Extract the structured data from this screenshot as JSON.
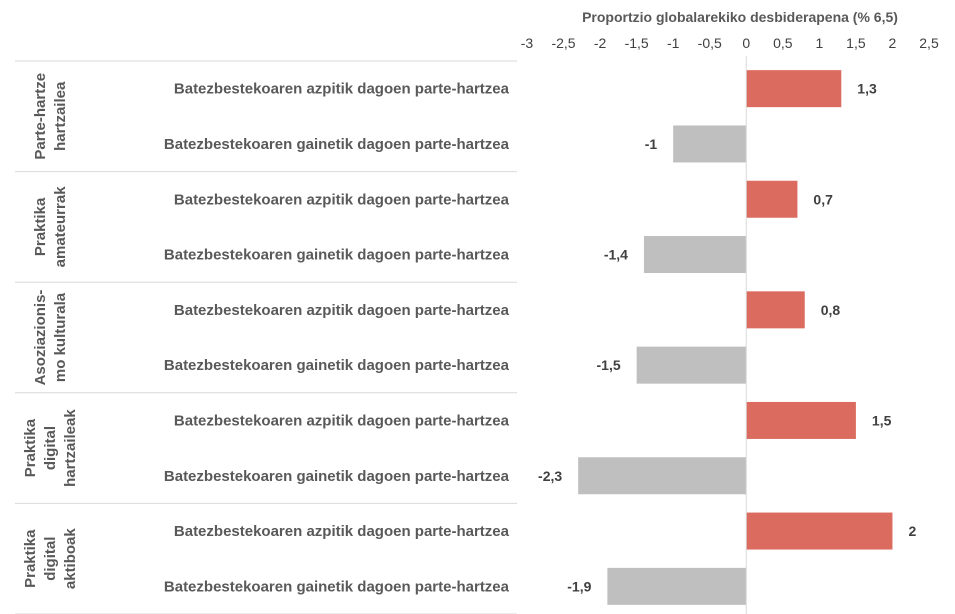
{
  "chart_data": {
    "type": "bar",
    "orientation": "horizontal",
    "title": "",
    "xlabel": "Proportzio globalarekiko desbiderapena (% 6,5)",
    "ylabel": "",
    "xlim": [
      -3,
      2.5
    ],
    "xticks": [
      "-3",
      "-2,5",
      "-2",
      "-1,5",
      "-1",
      "-0,5",
      "0",
      "0,5",
      "1",
      "1,5",
      "2",
      "2,5"
    ],
    "xtick_values": [
      -3,
      -2.5,
      -2,
      -1.5,
      -1,
      -0.5,
      0,
      0.5,
      1,
      1.5,
      2,
      2.5
    ],
    "x_axis_position": "top",
    "grid": false,
    "colors": {
      "positive": "#dc6b5f",
      "negative": "#bfbfbf",
      "text": "#595959",
      "divider": "#d9d9d9"
    },
    "groups": [
      {
        "label_lines": [
          "Parte-hartze",
          "hartzailea"
        ],
        "rows": [
          {
            "category": "Batezbestekoaren azpitik dagoen parte-hartzea",
            "value": 1.3,
            "label": "1,3"
          },
          {
            "category": "Batezbestekoaren gainetik dagoen parte-hartzea",
            "value": -1,
            "label": "-1"
          }
        ]
      },
      {
        "label_lines": [
          "Praktika",
          "amateurrak"
        ],
        "rows": [
          {
            "category": "Batezbestekoaren azpitik dagoen parte-hartzea",
            "value": 0.7,
            "label": "0,7"
          },
          {
            "category": "Batezbestekoaren gainetik dagoen parte-hartzea",
            "value": -1.4,
            "label": "-1,4"
          }
        ]
      },
      {
        "label_lines": [
          "Asoziazionis-",
          "mo kulturala"
        ],
        "rows": [
          {
            "category": "Batezbestekoaren azpitik dagoen parte-hartzea",
            "value": 0.8,
            "label": "0,8"
          },
          {
            "category": "Batezbestekoaren gainetik dagoen parte-hartzea",
            "value": -1.5,
            "label": "-1,5"
          }
        ]
      },
      {
        "label_lines": [
          "Praktika",
          "digital",
          "hartzaileak"
        ],
        "rows": [
          {
            "category": "Batezbestekoaren azpitik dagoen parte-hartzea",
            "value": 1.5,
            "label": "1,5"
          },
          {
            "category": "Batezbestekoaren gainetik dagoen parte-hartzea",
            "value": -2.3,
            "label": "-2,3"
          }
        ]
      },
      {
        "label_lines": [
          "Praktika",
          "digital",
          "aktiboak"
        ],
        "rows": [
          {
            "category": "Batezbestekoaren azpitik dagoen parte-hartzea",
            "value": 2,
            "label": "2"
          },
          {
            "category": "Batezbestekoaren gainetik dagoen parte-hartzea",
            "value": -1.9,
            "label": "-1,9"
          }
        ]
      }
    ]
  }
}
